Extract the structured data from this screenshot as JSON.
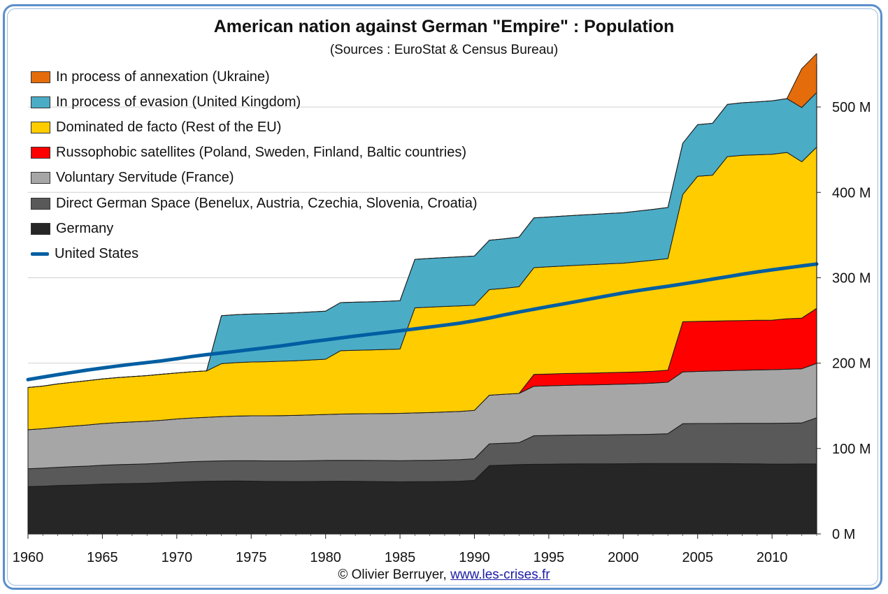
{
  "chart_data": {
    "type": "area",
    "stacked": true,
    "title": "American nation against German \"Empire\" : Population",
    "subtitle": "(Sources : EuroStat & Census Bureau)",
    "x_ticks": [
      1960,
      1965,
      1970,
      1975,
      1980,
      1985,
      1990,
      1995,
      2000,
      2005,
      2010
    ],
    "xlim": [
      1960,
      2013
    ],
    "ylim": [
      0,
      550
    ],
    "y_ticks": [
      {
        "value": 0,
        "label": "0 M"
      },
      {
        "value": 100,
        "label": "100 M"
      },
      {
        "value": 200,
        "label": "200 M"
      },
      {
        "value": 300,
        "label": "300 M"
      },
      {
        "value": 400,
        "label": "400 M"
      },
      {
        "value": 500,
        "label": "500 M"
      }
    ],
    "grid": true,
    "legend_position": "top-left",
    "x": [
      1960,
      1961,
      1962,
      1963,
      1964,
      1965,
      1966,
      1967,
      1968,
      1969,
      1970,
      1971,
      1972,
      1973,
      1974,
      1975,
      1976,
      1977,
      1978,
      1979,
      1980,
      1981,
      1982,
      1983,
      1984,
      1985,
      1986,
      1987,
      1988,
      1989,
      1990,
      1991,
      1992,
      1993,
      1994,
      1995,
      1996,
      1997,
      1998,
      1999,
      2000,
      2001,
      2002,
      2003,
      2004,
      2005,
      2006,
      2007,
      2008,
      2009,
      2010,
      2011,
      2012,
      2013
    ],
    "series": [
      {
        "name": "Germany",
        "color": "#262626",
        "values": [
          55.4,
          55.9,
          56.6,
          57.1,
          57.6,
          58.3,
          58.8,
          59.0,
          59.3,
          59.9,
          60.7,
          61.3,
          61.7,
          61.9,
          62.0,
          61.8,
          61.5,
          61.4,
          61.3,
          61.4,
          61.6,
          61.7,
          61.6,
          61.4,
          61.2,
          61.0,
          61.1,
          61.1,
          61.4,
          61.7,
          62.7,
          80.0,
          80.6,
          81.2,
          81.5,
          81.7,
          81.9,
          82.0,
          82.0,
          82.0,
          82.2,
          82.3,
          82.5,
          82.5,
          82.5,
          82.5,
          82.4,
          82.3,
          82.2,
          82.0,
          81.8,
          81.8,
          81.9,
          82.0
        ]
      },
      {
        "name": "Direct German Space (Benelux, Austria, Czechia, Slovenia, Croatia)",
        "color": "#595959",
        "values": [
          20.9,
          21.1,
          21.3,
          21.6,
          21.8,
          22.1,
          22.3,
          22.5,
          22.7,
          22.9,
          23.1,
          23.3,
          23.4,
          23.6,
          23.8,
          23.9,
          24.0,
          24.1,
          24.2,
          24.3,
          24.4,
          24.5,
          24.6,
          24.6,
          24.7,
          24.8,
          24.9,
          25.0,
          25.1,
          25.2,
          25.3,
          25.5,
          25.6,
          25.7,
          33.5,
          33.6,
          33.7,
          33.8,
          33.9,
          34.0,
          34.1,
          34.1,
          34.2,
          34.9,
          46.6,
          46.8,
          46.9,
          47.1,
          47.3,
          47.5,
          47.7,
          47.9,
          48.1,
          54.0
        ]
      },
      {
        "name": "Voluntary Servitude (France)",
        "color": "#a6a6a6",
        "values": [
          45.7,
          46.2,
          46.9,
          47.6,
          48.2,
          48.8,
          49.2,
          49.6,
          49.9,
          50.3,
          50.8,
          51.2,
          51.5,
          51.9,
          52.2,
          52.6,
          52.8,
          53.0,
          53.3,
          53.6,
          53.9,
          54.2,
          54.5,
          54.8,
          55.1,
          55.4,
          55.7,
          56.0,
          56.3,
          56.6,
          56.7,
          57.0,
          57.4,
          57.6,
          57.9,
          58.1,
          58.3,
          58.5,
          58.7,
          58.9,
          59.1,
          59.5,
          59.9,
          60.3,
          60.6,
          61.0,
          61.4,
          61.8,
          62.1,
          62.5,
          62.8,
          63.1,
          63.4,
          63.7
        ]
      },
      {
        "name": "Russophobic satellites (Poland, Sweden, Finland, Baltic countries)",
        "color": "#ff0000",
        "values": [
          0,
          0,
          0,
          0,
          0,
          0,
          0,
          0,
          0,
          0,
          0,
          0,
          0,
          0,
          0,
          0,
          0,
          0,
          0,
          0,
          0,
          0,
          0,
          0,
          0,
          0,
          0,
          0,
          0,
          0,
          0,
          0,
          0,
          0,
          13.9,
          13.9,
          13.9,
          13.9,
          13.9,
          13.9,
          13.9,
          13.9,
          13.9,
          14.0,
          58.8,
          58.6,
          58.5,
          58.4,
          58.3,
          58.2,
          58.1,
          59.2,
          59.3,
          64.5
        ]
      },
      {
        "name": "Dominated de facto  (Rest of the EU)",
        "color": "#ffcc00",
        "values": [
          49.5,
          49.9,
          50.8,
          51.3,
          51.9,
          52.3,
          52.7,
          53.1,
          53.5,
          53.9,
          53.9,
          54.1,
          54.3,
          62.0,
          62.6,
          63.0,
          63.4,
          63.7,
          64.0,
          64.4,
          64.7,
          74.1,
          74.4,
          74.7,
          75.0,
          75.3,
          123.1,
          123.5,
          123.6,
          123.6,
          123.1,
          123.6,
          124.0,
          125.0,
          125.0,
          125.5,
          126.0,
          126.5,
          127.0,
          127.5,
          127.8,
          129.0,
          130.0,
          130.8,
          149.0,
          170.0,
          170.9,
          192.3,
          193.5,
          193.8,
          194.3,
          194.8,
          183.1,
          188.8
        ]
      },
      {
        "name": "In process of evasion (United Kingdom)",
        "color": "#4bacc6",
        "values": [
          0,
          0,
          0,
          0,
          0,
          0,
          0,
          0,
          0,
          0,
          0,
          0,
          0,
          56.2,
          56.2,
          56.2,
          56.2,
          56.2,
          56.2,
          56.2,
          56.3,
          56.4,
          56.3,
          56.3,
          56.4,
          56.6,
          56.8,
          57.0,
          57.2,
          57.4,
          57.6,
          57.8,
          58.0,
          58.2,
          58.3,
          58.4,
          58.5,
          58.6,
          58.8,
          59.0,
          59.1,
          59.3,
          59.6,
          59.8,
          60.0,
          60.4,
          60.8,
          61.1,
          61.6,
          62.0,
          62.5,
          63.0,
          63.5,
          64.0
        ]
      },
      {
        "name": "In process of annexation (Ukraine)",
        "color": "#e46c0a",
        "values": [
          0,
          0,
          0,
          0,
          0,
          0,
          0,
          0,
          0,
          0,
          0,
          0,
          0,
          0,
          0,
          0,
          0,
          0,
          0,
          0,
          0,
          0,
          0,
          0,
          0,
          0,
          0,
          0,
          0,
          0,
          0,
          0,
          0,
          0,
          0,
          0,
          0,
          0,
          0,
          0,
          0,
          0,
          0,
          0,
          0,
          0,
          0,
          0,
          0,
          0,
          0,
          0,
          45.6,
          45.5
        ]
      }
    ],
    "line_series": {
      "name": "United States",
      "color": "#005ea2",
      "values": [
        180.7,
        183.7,
        186.5,
        189.2,
        191.9,
        194.3,
        196.6,
        198.7,
        200.7,
        202.7,
        205.1,
        207.7,
        209.9,
        211.9,
        213.9,
        216.0,
        218.0,
        220.2,
        222.6,
        225.1,
        227.2,
        229.5,
        231.7,
        233.8,
        235.8,
        237.9,
        240.1,
        242.3,
        244.5,
        246.8,
        249.6,
        252.9,
        256.5,
        259.9,
        263.1,
        266.3,
        269.4,
        272.6,
        275.9,
        279.0,
        282.2,
        285.0,
        287.6,
        290.1,
        292.8,
        295.5,
        298.4,
        301.2,
        304.1,
        306.8,
        309.3,
        311.6,
        313.9,
        316.1
      ]
    }
  },
  "legend": [
    {
      "label": "In process of annexation (Ukraine)",
      "color": "#e46c0a",
      "kind": "box"
    },
    {
      "label": "In process of evasion (United Kingdom)",
      "color": "#4bacc6",
      "kind": "box"
    },
    {
      "label": "Dominated de facto  (Rest of the EU)",
      "color": "#ffcc00",
      "kind": "box"
    },
    {
      "label": "Russophobic satellites (Poland, Sweden, Finland, Baltic countries)",
      "color": "#ff0000",
      "kind": "box"
    },
    {
      "label": "Voluntary Servitude (France)",
      "color": "#a6a6a6",
      "kind": "box"
    },
    {
      "label": "Direct German Space (Benelux, Austria, Czechia, Slovenia, Croatia)",
      "color": "#595959",
      "kind": "box"
    },
    {
      "label": "Germany",
      "color": "#262626",
      "kind": "box"
    },
    {
      "label": "United States",
      "color": "#005ea2",
      "kind": "line"
    }
  ],
  "credit": {
    "prefix": "© Olivier Berruyer, ",
    "link_text": "www.les-crises.fr"
  }
}
